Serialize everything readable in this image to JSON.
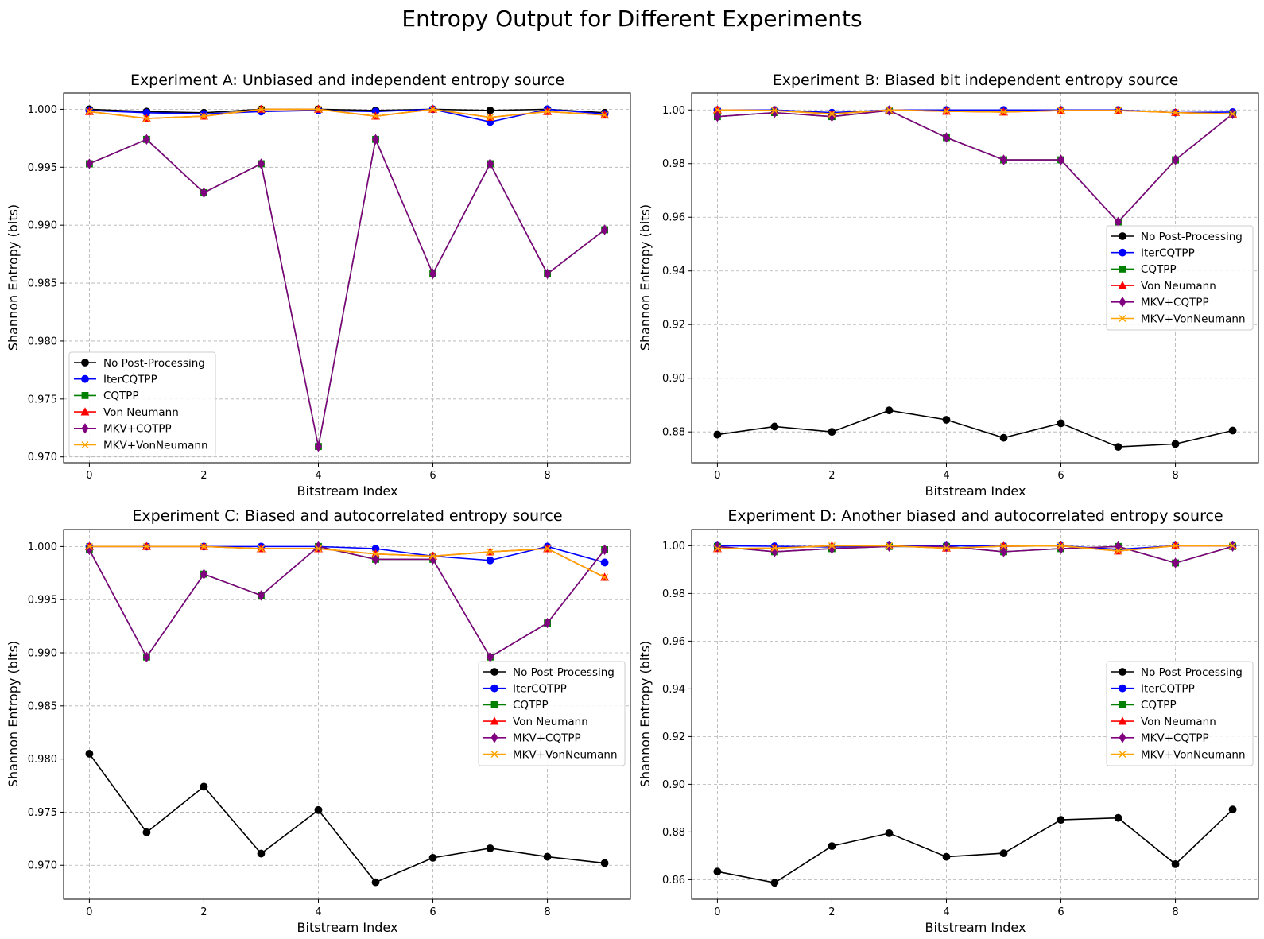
{
  "suptitle": "Entropy Output for Different Experiments",
  "colors": {
    "No Post-Processing": "#000000",
    "IterCQTPP": "#0000ff",
    "CQTPP": "#008000",
    "Von Neumann": "#ff0000",
    "MKV+CQTPP": "#800080",
    "MKV+VonNeumann": "#ffa500"
  },
  "chart_data": [
    {
      "type": "line",
      "title": "Experiment A: Unbiased and independent entropy source",
      "xlabel": "Bitstream Index",
      "ylabel": "Shannon Entropy (bits)",
      "xlim": [
        -0.45,
        9.45
      ],
      "ylim": [
        0.9695,
        1.0014
      ],
      "xticks": [
        0,
        2,
        4,
        6,
        8
      ],
      "yticks": [
        0.97,
        0.975,
        0.98,
        0.985,
        0.99,
        0.995,
        1.0
      ],
      "ytick_labels": [
        "0.970",
        "0.975",
        "0.980",
        "0.985",
        "0.990",
        "0.995",
        "1.000"
      ],
      "grid": true,
      "legend_position": "lower-left",
      "x": [
        0,
        1,
        2,
        3,
        4,
        5,
        6,
        7,
        8,
        9
      ],
      "series": [
        {
          "name": "No Post-Processing",
          "marker": "circle",
          "values": [
            1.0,
            0.9998,
            0.9997,
            1.0,
            1.0,
            0.9999,
            1.0,
            0.9999,
            1.0,
            0.9997
          ]
        },
        {
          "name": "IterCQTPP",
          "marker": "circle",
          "values": [
            0.9999,
            0.9997,
            0.9996,
            0.9998,
            0.9999,
            0.9998,
            1.0,
            0.9989,
            1.0,
            0.9996
          ]
        },
        {
          "name": "CQTPP",
          "marker": "square",
          "values": [
            0.9953,
            0.9974,
            0.9928,
            0.9953,
            0.9709,
            0.9974,
            0.9858,
            0.9953,
            0.9858,
            0.9896
          ]
        },
        {
          "name": "Von Neumann",
          "marker": "triangle",
          "values": [
            0.9998,
            0.9992,
            0.9994,
            1.0,
            1.0,
            0.9994,
            1.0,
            0.9993,
            0.9998,
            0.9995
          ]
        },
        {
          "name": "MKV+CQTPP",
          "marker": "diamond",
          "values": [
            0.9953,
            0.9974,
            0.9928,
            0.9953,
            0.9709,
            0.9974,
            0.9858,
            0.9953,
            0.9858,
            0.9896
          ]
        },
        {
          "name": "MKV+VonNeumann",
          "marker": "x",
          "values": [
            0.9998,
            0.9992,
            0.9994,
            1.0,
            1.0,
            0.9994,
            1.0,
            0.9993,
            0.9998,
            0.9995
          ]
        }
      ]
    },
    {
      "type": "line",
      "title": "Experiment B: Biased bit independent entropy source",
      "xlabel": "Bitstream Index",
      "ylabel": "Shannon Entropy (bits)",
      "xlim": [
        -0.45,
        9.45
      ],
      "ylim": [
        0.8685,
        1.0063
      ],
      "xticks": [
        0,
        2,
        4,
        6,
        8
      ],
      "yticks": [
        0.88,
        0.9,
        0.92,
        0.94,
        0.96,
        0.98,
        1.0
      ],
      "ytick_labels": [
        "0.88",
        "0.90",
        "0.92",
        "0.94",
        "0.96",
        "0.98",
        "1.00"
      ],
      "grid": true,
      "legend_position": "center-right",
      "x": [
        0,
        1,
        2,
        3,
        4,
        5,
        6,
        7,
        8,
        9
      ],
      "series": [
        {
          "name": "No Post-Processing",
          "marker": "circle",
          "values": [
            0.879,
            0.882,
            0.88,
            0.888,
            0.8845,
            0.8778,
            0.8832,
            0.8744,
            0.8755,
            0.8805
          ]
        },
        {
          "name": "IterCQTPP",
          "marker": "circle",
          "values": [
            1.0,
            1.0,
            0.999,
            1.0,
            1.0,
            1.0,
            1.0,
            1.0,
            0.999,
            0.9992
          ]
        },
        {
          "name": "CQTPP",
          "marker": "square",
          "values": [
            0.9975,
            0.999,
            0.9975,
            0.9998,
            0.9897,
            0.9814,
            0.9814,
            0.9582,
            0.9814,
            0.9985
          ]
        },
        {
          "name": "Von Neumann",
          "marker": "triangle",
          "values": [
            1.0,
            0.9998,
            0.9985,
            1.0,
            0.9995,
            0.9992,
            0.9998,
            0.9998,
            0.999,
            0.9985
          ]
        },
        {
          "name": "MKV+CQTPP",
          "marker": "diamond",
          "values": [
            0.9975,
            0.999,
            0.9975,
            0.9998,
            0.9897,
            0.9814,
            0.9814,
            0.9582,
            0.9814,
            0.9985
          ]
        },
        {
          "name": "MKV+VonNeumann",
          "marker": "x",
          "values": [
            1.0,
            0.9998,
            0.9985,
            1.0,
            0.9995,
            0.9992,
            0.9998,
            0.9998,
            0.999,
            0.9985
          ]
        }
      ]
    },
    {
      "type": "line",
      "title": "Experiment C: Biased and autocorrelated entropy source",
      "xlabel": "Bitstream Index",
      "ylabel": "Shannon Entropy (bits)",
      "xlim": [
        -0.45,
        9.45
      ],
      "ylim": [
        0.9668,
        1.0016
      ],
      "xticks": [
        0,
        2,
        4,
        6,
        8
      ],
      "yticks": [
        0.97,
        0.975,
        0.98,
        0.985,
        0.99,
        0.995,
        1.0
      ],
      "ytick_labels": [
        "0.970",
        "0.975",
        "0.980",
        "0.985",
        "0.990",
        "0.995",
        "1.000"
      ],
      "grid": true,
      "legend_position": "center-right",
      "x": [
        0,
        1,
        2,
        3,
        4,
        5,
        6,
        7,
        8,
        9
      ],
      "series": [
        {
          "name": "No Post-Processing",
          "marker": "circle",
          "values": [
            0.9805,
            0.9731,
            0.9774,
            0.9711,
            0.9752,
            0.9684,
            0.9707,
            0.9716,
            0.9708,
            0.9702
          ]
        },
        {
          "name": "IterCQTPP",
          "marker": "circle",
          "values": [
            1.0,
            1.0,
            1.0,
            1.0,
            1.0,
            0.9998,
            0.9991,
            0.9987,
            1.0,
            0.9985
          ]
        },
        {
          "name": "CQTPP",
          "marker": "square",
          "values": [
            0.9997,
            0.9896,
            0.9974,
            0.9954,
            1.0,
            0.9988,
            0.9988,
            0.9896,
            0.9928,
            0.9997
          ]
        },
        {
          "name": "Von Neumann",
          "marker": "triangle",
          "values": [
            1.0,
            1.0,
            1.0,
            0.9998,
            0.9998,
            0.9993,
            0.9991,
            0.9995,
            0.9998,
            0.9971
          ]
        },
        {
          "name": "MKV+CQTPP",
          "marker": "diamond",
          "values": [
            0.9997,
            0.9896,
            0.9974,
            0.9954,
            1.0,
            0.9988,
            0.9988,
            0.9896,
            0.9928,
            0.9997
          ]
        },
        {
          "name": "MKV+VonNeumann",
          "marker": "x",
          "values": [
            1.0,
            1.0,
            1.0,
            0.9998,
            0.9998,
            0.9993,
            0.9991,
            0.9995,
            0.9998,
            0.9971
          ]
        }
      ]
    },
    {
      "type": "line",
      "title": "Experiment D: Another biased and autocorrelated entropy source",
      "xlabel": "Bitstream Index",
      "ylabel": "Shannon Entropy (bits)",
      "xlim": [
        -0.45,
        9.45
      ],
      "ylim": [
        0.8518,
        1.0068
      ],
      "xticks": [
        0,
        2,
        4,
        6,
        8
      ],
      "yticks": [
        0.86,
        0.88,
        0.9,
        0.92,
        0.94,
        0.96,
        0.98,
        1.0
      ],
      "ytick_labels": [
        "0.86",
        "0.88",
        "0.90",
        "0.92",
        "0.94",
        "0.96",
        "0.98",
        "1.00"
      ],
      "grid": true,
      "legend_position": "center-right",
      "x": [
        0,
        1,
        2,
        3,
        4,
        5,
        6,
        7,
        8,
        9
      ],
      "series": [
        {
          "name": "No Post-Processing",
          "marker": "circle",
          "values": [
            0.8634,
            0.8587,
            0.8741,
            0.8795,
            0.8696,
            0.8711,
            0.8851,
            0.8859,
            0.8665,
            0.8894
          ]
        },
        {
          "name": "IterCQTPP",
          "marker": "circle",
          "values": [
            1.0,
            0.9998,
            0.9995,
            1.0,
            1.0,
            0.9998,
            1.0,
            0.9985,
            1.0,
            1.0
          ]
        },
        {
          "name": "CQTPP",
          "marker": "square",
          "values": [
            0.9997,
            0.9975,
            0.9988,
            0.9997,
            0.9997,
            0.9975,
            0.9988,
            0.9997,
            0.9928,
            0.9997
          ]
        },
        {
          "name": "Von Neumann",
          "marker": "triangle",
          "values": [
            0.9988,
            0.999,
            1.0,
            1.0,
            0.999,
            0.9998,
            1.0,
            0.9978,
            1.0,
            1.0
          ]
        },
        {
          "name": "MKV+CQTPP",
          "marker": "diamond",
          "values": [
            0.9997,
            0.9975,
            0.9988,
            0.9997,
            0.9997,
            0.9975,
            0.9988,
            0.9997,
            0.9928,
            0.9997
          ]
        },
        {
          "name": "MKV+VonNeumann",
          "marker": "x",
          "values": [
            0.9988,
            0.999,
            1.0,
            1.0,
            0.999,
            0.9998,
            1.0,
            0.9978,
            1.0,
            1.0
          ]
        }
      ]
    }
  ]
}
